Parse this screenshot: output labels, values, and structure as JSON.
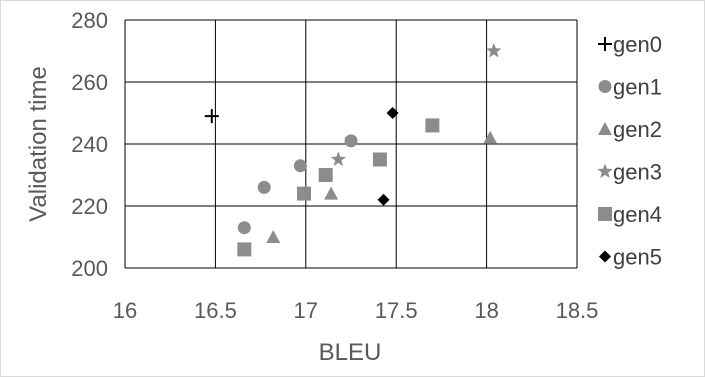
{
  "chart_data": {
    "type": "scatter",
    "title": "",
    "xlabel": "BLEU",
    "ylabel": "Validation time",
    "xlim": [
      16,
      18.5
    ],
    "ylim": [
      200,
      280
    ],
    "xticks": [
      "16",
      "16.5",
      "17",
      "17.5",
      "18",
      "18.5"
    ],
    "yticks": [
      "200",
      "220",
      "240",
      "260",
      "280"
    ],
    "grid": "horizontal and vertical",
    "legend_position": "right",
    "series": [
      {
        "name": "gen0",
        "marker": "plus",
        "color": "#000000",
        "points": [
          [
            16.48,
            249
          ]
        ]
      },
      {
        "name": "gen1",
        "marker": "circle",
        "color": "#8c8c8c",
        "points": [
          [
            16.66,
            213
          ],
          [
            16.77,
            226
          ],
          [
            16.97,
            233
          ],
          [
            17.25,
            241
          ]
        ]
      },
      {
        "name": "gen2",
        "marker": "triangle",
        "color": "#8c8c8c",
        "points": [
          [
            16.82,
            210
          ],
          [
            17.14,
            224
          ],
          [
            18.02,
            242
          ]
        ]
      },
      {
        "name": "gen3",
        "marker": "star",
        "color": "#8c8c8c",
        "points": [
          [
            17.18,
            235
          ],
          [
            18.04,
            270
          ]
        ]
      },
      {
        "name": "gen4",
        "marker": "square",
        "color": "#8c8c8c",
        "points": [
          [
            16.66,
            206
          ],
          [
            16.99,
            224
          ],
          [
            17.11,
            230
          ],
          [
            17.41,
            235
          ],
          [
            17.7,
            246
          ]
        ]
      },
      {
        "name": "gen5",
        "marker": "diamond",
        "color": "#000000",
        "points": [
          [
            17.43,
            222
          ],
          [
            17.48,
            250
          ]
        ]
      }
    ]
  }
}
